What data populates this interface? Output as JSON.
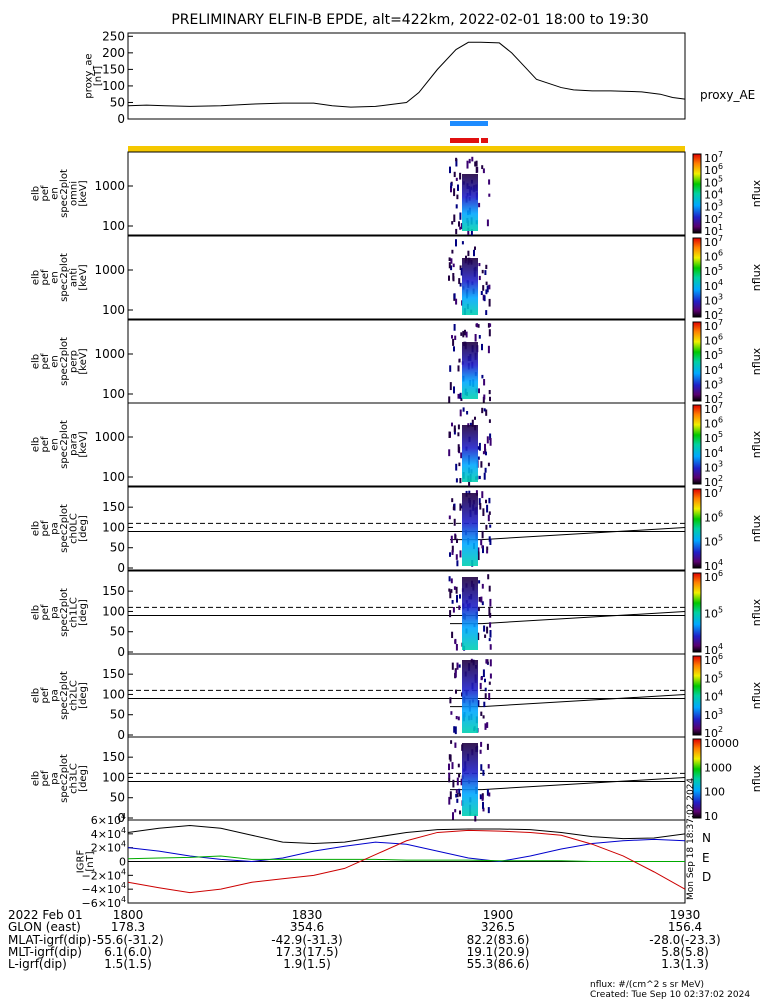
{
  "title": "PRELIMINARY ELFIN-B EPDE, alt=422km, 2022-02-01 18:00 to 19:30",
  "colors": {
    "blue_bar": "#1e8cff",
    "red_bar": "#e01010",
    "gold_bar": "#f5c800",
    "igrf_N": "#0000cc",
    "igrf_E": "#00aa00",
    "igrf_D": "#cc0000"
  },
  "chart_data": [
    {
      "type": "line",
      "ylabel": "proxy_ae [nT]",
      "legend": "proxy_AE",
      "ylim": [
        0,
        260
      ],
      "yticks": [
        "0",
        "50",
        "100",
        "150",
        "200",
        "250"
      ],
      "x_minutes": [
        0,
        3,
        6,
        10,
        15,
        20,
        25,
        30,
        33,
        36,
        40,
        45,
        47,
        50,
        53,
        55,
        57,
        60,
        62,
        64,
        66,
        70,
        72,
        75,
        78,
        80,
        83,
        86,
        88,
        90
      ],
      "y": [
        40,
        42,
        40,
        38,
        40,
        45,
        48,
        48,
        40,
        36,
        38,
        50,
        80,
        150,
        210,
        232,
        232,
        230,
        200,
        160,
        120,
        95,
        88,
        85,
        85,
        84,
        82,
        75,
        65,
        60
      ]
    },
    {
      "type": "heatmap",
      "ylabel": "elb pef en spec2plot omni [keV]",
      "yticks": [
        "100",
        "1000"
      ],
      "colorbar": {
        "label": "nflux",
        "ticks": [
          "10^1",
          "10^2",
          "10^3",
          "10^4",
          "10^5",
          "10^6",
          "10^7"
        ]
      }
    },
    {
      "type": "heatmap",
      "ylabel": "elb pef en spec2plot anti [keV]",
      "yticks": [
        "100",
        "1000"
      ],
      "colorbar": {
        "label": "nflux",
        "ticks": [
          "10^2",
          "10^3",
          "10^4",
          "10^5",
          "10^6",
          "10^7"
        ]
      }
    },
    {
      "type": "heatmap",
      "ylabel": "elb pef en spec2plot perp [keV]",
      "yticks": [
        "100",
        "1000"
      ],
      "colorbar": {
        "label": "nflux",
        "ticks": [
          "10^2",
          "10^3",
          "10^4",
          "10^5",
          "10^6",
          "10^7"
        ]
      }
    },
    {
      "type": "heatmap",
      "ylabel": "elb pef en spec2plot para [keV]",
      "yticks": [
        "100",
        "1000"
      ],
      "colorbar": {
        "label": "nflux",
        "ticks": [
          "10^2",
          "10^3",
          "10^4",
          "10^5",
          "10^6",
          "10^7"
        ]
      }
    },
    {
      "type": "heatmap",
      "ylabel": "elb pef pa spec2plot ch0LC [deg]",
      "yticks": [
        "0",
        "50",
        "100",
        "150"
      ],
      "colorbar": {
        "label": "nflux",
        "ticks": [
          "10^4",
          "10^5",
          "10^6",
          "10^7"
        ]
      }
    },
    {
      "type": "heatmap",
      "ylabel": "elb pef pa spec2plot ch1LC [deg]",
      "yticks": [
        "0",
        "50",
        "100",
        "150"
      ],
      "colorbar": {
        "label": "nflux",
        "ticks": [
          "10^4",
          "10^5",
          "10^6"
        ]
      }
    },
    {
      "type": "heatmap",
      "ylabel": "elb pef pa spec2plot ch2LC [deg]",
      "yticks": [
        "0",
        "50",
        "100",
        "150"
      ],
      "colorbar": {
        "label": "nflux",
        "ticks": [
          "10^2",
          "10^3",
          "10^4",
          "10^5",
          "10^6"
        ]
      }
    },
    {
      "type": "heatmap",
      "ylabel": "elb pef pa spec2plot ch3LC [deg]",
      "yticks": [
        "0",
        "50",
        "100",
        "150"
      ],
      "colorbar": {
        "label": "nflux",
        "ticks": [
          "10",
          "100",
          "1000",
          "10000"
        ]
      }
    },
    {
      "type": "line",
      "ylabel": "IGRF [nT]",
      "ylim": [
        -60000,
        60000
      ],
      "yticks": [
        "−6×10^4",
        "−4×10^4",
        "−2×10^4",
        "0",
        "2×10^4",
        "4×10^4",
        "6×10^4"
      ],
      "x_minutes": [
        0,
        5,
        10,
        15,
        20,
        25,
        30,
        35,
        40,
        45,
        50,
        55,
        60,
        65,
        70,
        75,
        80,
        85,
        90
      ],
      "series": [
        {
          "name": "N",
          "values": [
            20000,
            15000,
            8000,
            3000,
            0,
            5000,
            15000,
            22000,
            28000,
            25000,
            15000,
            5000,
            0,
            8000,
            18000,
            26000,
            30000,
            32000,
            30000
          ]
        },
        {
          "name": "E",
          "values": [
            4000,
            5000,
            6000,
            8000,
            3000,
            3000,
            3000,
            3000,
            3000,
            2000,
            2000,
            2000,
            1000,
            1000,
            1000,
            0,
            0,
            0,
            0
          ]
        },
        {
          "name": "D",
          "values": [
            -30000,
            -38000,
            -45000,
            -40000,
            -30000,
            -25000,
            -20000,
            -10000,
            10000,
            30000,
            42000,
            45000,
            44000,
            42000,
            38000,
            25000,
            8000,
            -15000,
            -40000
          ]
        },
        {
          "name": "",
          "values": [
            42000,
            48000,
            52000,
            48000,
            38000,
            28000,
            26000,
            28000,
            35000,
            42000,
            46000,
            47000,
            47000,
            46000,
            42000,
            36000,
            33000,
            34000,
            40000
          ]
        }
      ]
    }
  ],
  "ephemeris": {
    "ticks": [
      "1800",
      "1830",
      "1900",
      "1930"
    ],
    "rows": [
      {
        "label": "2022 Feb 01",
        "values": [
          "",
          "",
          "",
          ""
        ]
      },
      {
        "label": "GLON (east)",
        "values": [
          "178.3",
          "354.6",
          "326.5",
          "156.4"
        ]
      },
      {
        "label": "MLAT-igrf(dip)",
        "values": [
          "-55.6(-31.2)",
          "-42.9(-31.3)",
          "82.2(83.6)",
          "-28.0(-23.3)"
        ]
      },
      {
        "label": "MLT-igrf(dip)",
        "values": [
          "6.1(6.0)",
          "17.3(17.5)",
          "19.1(20.9)",
          "5.8(5.8)"
        ]
      },
      {
        "label": "L-igrf(dip)",
        "values": [
          "1.5(1.5)",
          "1.9(1.5)",
          "55.3(86.6)",
          "1.3(1.3)"
        ]
      }
    ]
  },
  "footer": {
    "units": "nflux: #/(cm^2 s sr MeV)",
    "created": "Created: Tue Sep 10 02:37:02 2024",
    "side_stamp": "Mon Sep 18 18:37:02 2024"
  }
}
